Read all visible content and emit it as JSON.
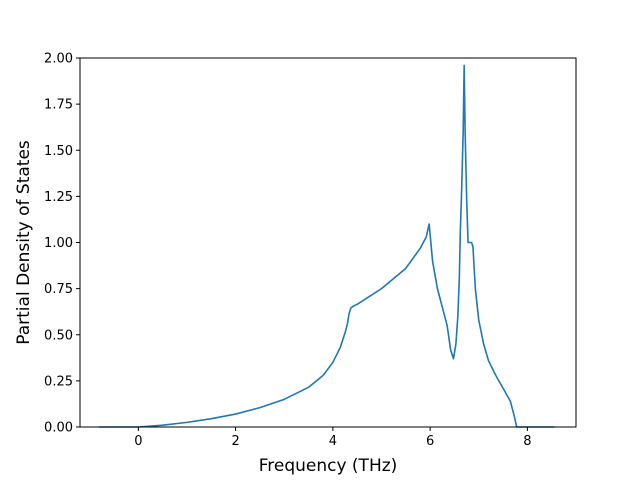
{
  "chart_data": {
    "type": "line",
    "xlabel": "Frequency (THz)",
    "ylabel": "Partial Density of States",
    "xlim": [
      -1.2,
      9.0
    ],
    "ylim": [
      0.0,
      2.0
    ],
    "xticks": [
      0,
      2,
      4,
      6,
      8
    ],
    "yticks": [
      0.0,
      0.25,
      0.5,
      0.75,
      1.0,
      1.25,
      1.5,
      1.75,
      2.0
    ],
    "xtick_labels": [
      "0",
      "2",
      "4",
      "6",
      "8"
    ],
    "ytick_labels": [
      "0.00",
      "0.25",
      "0.50",
      "0.75",
      "1.00",
      "1.25",
      "1.50",
      "1.75",
      "2.00"
    ],
    "grid": false,
    "legend": "none",
    "line_color": "#1f77b4",
    "series": [
      {
        "x": [
          -0.8,
          0.0,
          0.5,
          1.0,
          1.5,
          2.0,
          2.5,
          3.0,
          3.5,
          3.8,
          4.0,
          4.15,
          4.25,
          4.3,
          4.33,
          4.37,
          4.42,
          4.5,
          5.0,
          5.5,
          5.8,
          5.92,
          5.98,
          6.05,
          6.15,
          6.25,
          6.35,
          6.42,
          6.48,
          6.53,
          6.57,
          6.6,
          6.62,
          6.65,
          6.68,
          6.7,
          6.72,
          6.75,
          6.78,
          6.85,
          6.88,
          6.93,
          7.0,
          7.1,
          7.2,
          7.35,
          7.5,
          7.65,
          7.73,
          7.78,
          8.0,
          8.55
        ],
        "y": [
          0.0,
          0.0,
          0.01,
          0.025,
          0.045,
          0.07,
          0.105,
          0.15,
          0.215,
          0.28,
          0.35,
          0.43,
          0.51,
          0.56,
          0.61,
          0.645,
          0.655,
          0.665,
          0.75,
          0.86,
          0.97,
          1.03,
          1.1,
          0.9,
          0.75,
          0.65,
          0.55,
          0.42,
          0.37,
          0.45,
          0.6,
          0.8,
          1.05,
          1.3,
          1.6,
          1.96,
          1.6,
          1.25,
          1.0,
          1.0,
          0.98,
          0.75,
          0.58,
          0.45,
          0.36,
          0.28,
          0.21,
          0.14,
          0.06,
          0.0,
          0.0,
          0.0
        ]
      }
    ]
  }
}
